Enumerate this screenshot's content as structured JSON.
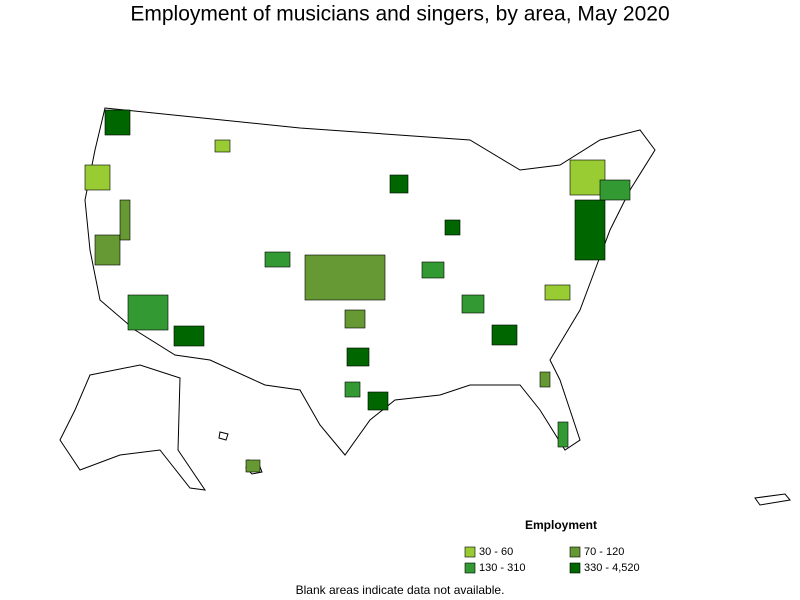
{
  "title": "Employment of musicians and singers, by area, May 2020",
  "legend": {
    "title": "Employment",
    "items": [
      {
        "label": "30 - 60",
        "color": "#99cc33"
      },
      {
        "label": "70 - 120",
        "color": "#669933"
      },
      {
        "label": "130 - 310",
        "color": "#339933"
      },
      {
        "label": "330 - 4,520",
        "color": "#006600"
      }
    ]
  },
  "note": "Blank areas indicate data not available."
}
